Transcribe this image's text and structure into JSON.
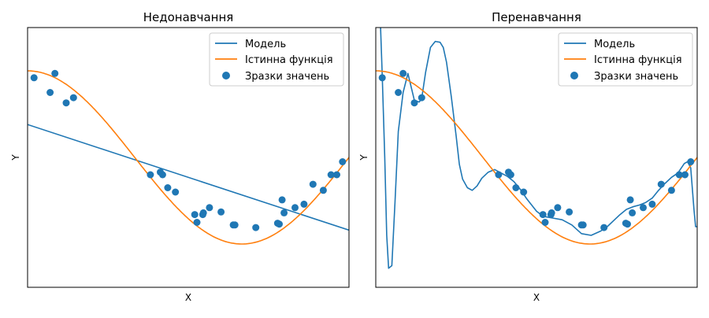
{
  "colors": {
    "model": "#1f77b4",
    "true_function": "#ff7f0e",
    "samples": "#1f77b4"
  },
  "chart_data": [
    {
      "type": "line",
      "title": "Недонавчання",
      "xlabel": "X",
      "ylabel": "Y",
      "xlim": [
        0,
        1
      ],
      "ylim": [
        -1.5,
        1.5
      ],
      "legend_position": "top-right",
      "legend": [
        "Модель",
        "Істинна функція",
        "Зразки значень"
      ],
      "series": [
        {
          "name": "Модель",
          "kind": "line",
          "x": [
            0,
            1
          ],
          "y": [
            0.38,
            -0.84
          ]
        },
        {
          "name": "Істинна функція",
          "kind": "function",
          "expr": "cos(1.5*pi*x)"
        },
        {
          "name": "Зразки значень",
          "kind": "scatter",
          "x": [
            0.02,
            0.07,
            0.085,
            0.12,
            0.143,
            0.382,
            0.413,
            0.42,
            0.436,
            0.46,
            0.52,
            0.527,
            0.545,
            0.547,
            0.566,
            0.602,
            0.64,
            0.645,
            0.71,
            0.778,
            0.783,
            0.792,
            0.798,
            0.832,
            0.86,
            0.888,
            0.92,
            0.944,
            0.962,
            0.98
          ],
          "y": [
            0.92,
            0.75,
            0.97,
            0.63,
            0.69,
            -0.2,
            -0.17,
            -0.2,
            -0.35,
            -0.4,
            -0.66,
            -0.75,
            -0.66,
            -0.64,
            -0.58,
            -0.63,
            -0.78,
            -0.78,
            -0.81,
            -0.76,
            -0.77,
            -0.49,
            -0.64,
            -0.58,
            -0.54,
            -0.31,
            -0.38,
            -0.2,
            -0.2,
            -0.05
          ]
        }
      ]
    },
    {
      "type": "line",
      "title": "Перенавчання",
      "xlabel": "X",
      "ylabel": "Y",
      "xlim": [
        0,
        1
      ],
      "ylim": [
        -1.5,
        1.5
      ],
      "legend_position": "top-right",
      "legend": [
        "Модель",
        "Істинна функція",
        "Зразки значень"
      ],
      "series": [
        {
          "name": "Модель",
          "kind": "line",
          "x": [
            0.015,
            0.02,
            0.028,
            0.034,
            0.04,
            0.05,
            0.06,
            0.07,
            0.085,
            0.1,
            0.12,
            0.135,
            0.143,
            0.155,
            0.17,
            0.185,
            0.2,
            0.21,
            0.22,
            0.235,
            0.25,
            0.26,
            0.27,
            0.285,
            0.3,
            0.315,
            0.33,
            0.35,
            0.37,
            0.39,
            0.41,
            0.43,
            0.45,
            0.47,
            0.5,
            0.52,
            0.55,
            0.58,
            0.61,
            0.64,
            0.67,
            0.7,
            0.72,
            0.74,
            0.76,
            0.78,
            0.8,
            0.82,
            0.84,
            0.86,
            0.88,
            0.9,
            0.92,
            0.94,
            0.96,
            0.97,
            0.98,
            0.99,
            0.995,
            1.0
          ],
          "y": [
            1.5,
            0.95,
            0.0,
            -0.9,
            -1.28,
            -1.25,
            -0.5,
            0.3,
            0.75,
            0.97,
            0.66,
            0.64,
            0.68,
            0.98,
            1.27,
            1.34,
            1.33,
            1.27,
            1.1,
            0.7,
            0.25,
            -0.08,
            -0.25,
            -0.35,
            -0.38,
            -0.33,
            -0.24,
            -0.17,
            -0.14,
            -0.18,
            -0.22,
            -0.28,
            -0.37,
            -0.48,
            -0.62,
            -0.68,
            -0.7,
            -0.72,
            -0.78,
            -0.88,
            -0.9,
            -0.85,
            -0.8,
            -0.73,
            -0.66,
            -0.6,
            -0.57,
            -0.55,
            -0.52,
            -0.47,
            -0.38,
            -0.3,
            -0.23,
            -0.18,
            -0.07,
            -0.05,
            -0.12,
            -0.6,
            -0.8,
            -0.8
          ]
        },
        {
          "name": "Істинна функція",
          "kind": "function",
          "expr": "cos(1.5*pi*x)"
        },
        {
          "name": "Зразки значень",
          "kind": "scatter",
          "x": [
            0.02,
            0.07,
            0.085,
            0.12,
            0.143,
            0.382,
            0.413,
            0.42,
            0.436,
            0.46,
            0.52,
            0.527,
            0.545,
            0.547,
            0.566,
            0.602,
            0.64,
            0.645,
            0.71,
            0.778,
            0.783,
            0.792,
            0.798,
            0.832,
            0.86,
            0.888,
            0.92,
            0.944,
            0.962,
            0.98
          ],
          "y": [
            0.92,
            0.75,
            0.97,
            0.63,
            0.69,
            -0.2,
            -0.17,
            -0.2,
            -0.35,
            -0.4,
            -0.66,
            -0.75,
            -0.66,
            -0.64,
            -0.58,
            -0.63,
            -0.78,
            -0.78,
            -0.81,
            -0.76,
            -0.77,
            -0.49,
            -0.64,
            -0.58,
            -0.54,
            -0.31,
            -0.38,
            -0.2,
            -0.2,
            -0.05
          ]
        }
      ]
    }
  ]
}
